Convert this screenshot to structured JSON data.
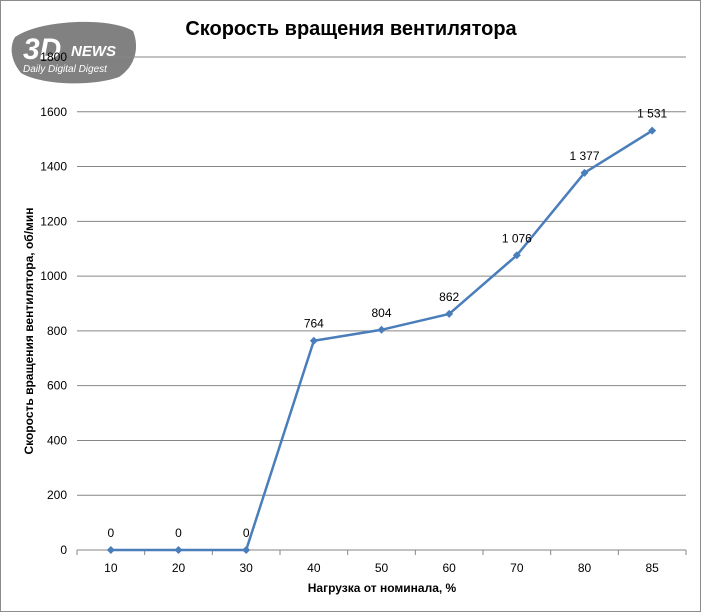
{
  "watermark": {
    "main": "3D",
    "news": "NEWS",
    "tagline": "Daily Digital Digest"
  },
  "chart_data": {
    "type": "line",
    "title": "Скорость вращения вентилятора",
    "xlabel": "Нагрузка от номинала, %",
    "ylabel": "Скорость вращения вентилятора, об/мин",
    "categories": [
      "10",
      "20",
      "30",
      "40",
      "50",
      "60",
      "70",
      "80",
      "85"
    ],
    "series": [
      {
        "values": [
          0,
          0,
          0,
          764,
          804,
          862,
          1076,
          1377,
          1531
        ],
        "data_labels": [
          "0",
          "0",
          "0",
          "764",
          "804",
          "862",
          "1 076",
          "1 377",
          "1 531"
        ],
        "color": "#4a7ebb"
      }
    ],
    "yticks": [
      0,
      200,
      400,
      600,
      800,
      1000,
      1200,
      1400,
      1600,
      1800
    ],
    "ylim": [
      0,
      1800
    ],
    "grid": true,
    "legend": "none",
    "gridline_color": "#868686"
  }
}
